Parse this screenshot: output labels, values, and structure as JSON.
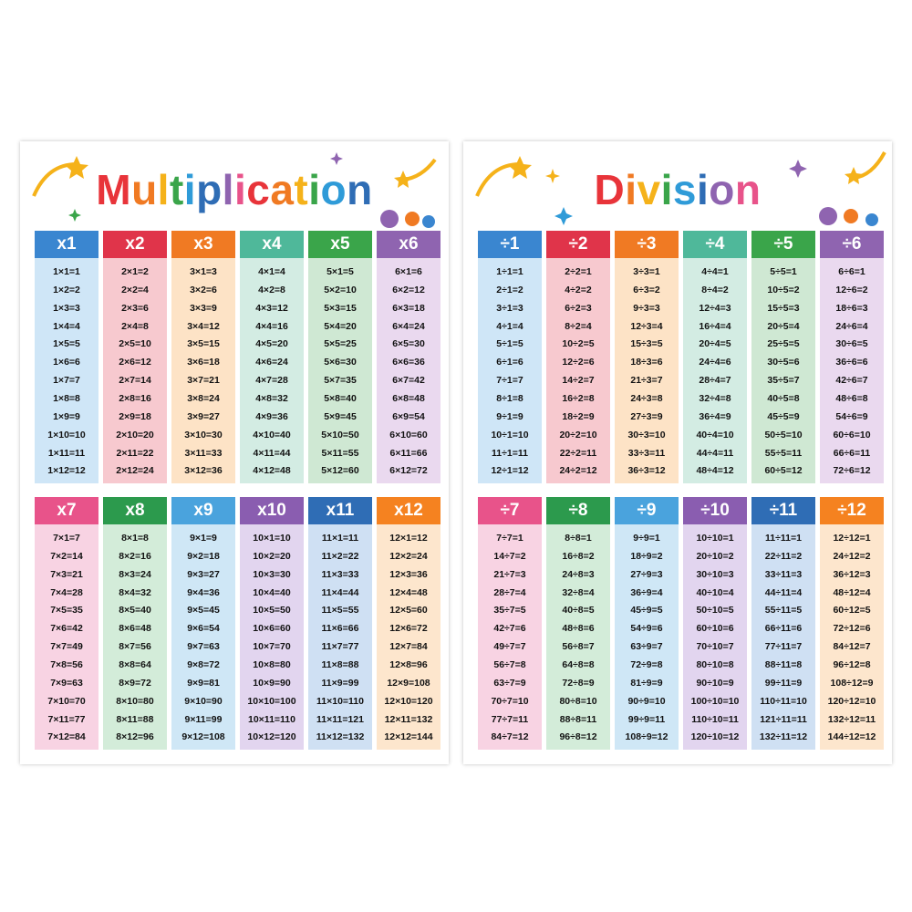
{
  "posters": [
    {
      "title": "Multiplication",
      "tables": [
        {
          "header": "x1",
          "rows": [
            "1×1=1",
            "1×2=2",
            "1×3=3",
            "1×4=4",
            "1×5=5",
            "1×6=6",
            "1×7=7",
            "1×8=8",
            "1×9=9",
            "1×10=10",
            "1×11=11",
            "1×12=12"
          ]
        },
        {
          "header": "x2",
          "rows": [
            "2×1=2",
            "2×2=4",
            "2×3=6",
            "2×4=8",
            "2×5=10",
            "2×6=12",
            "2×7=14",
            "2×8=16",
            "2×9=18",
            "2×10=20",
            "2×11=22",
            "2×12=24"
          ]
        },
        {
          "header": "x3",
          "rows": [
            "3×1=3",
            "3×2=6",
            "3×3=9",
            "3×4=12",
            "3×5=15",
            "3×6=18",
            "3×7=21",
            "3×8=24",
            "3×9=27",
            "3×10=30",
            "3×11=33",
            "3×12=36"
          ]
        },
        {
          "header": "x4",
          "rows": [
            "4×1=4",
            "4×2=8",
            "4×3=12",
            "4×4=16",
            "4×5=20",
            "4×6=24",
            "4×7=28",
            "4×8=32",
            "4×9=36",
            "4×10=40",
            "4×11=44",
            "4×12=48"
          ]
        },
        {
          "header": "x5",
          "rows": [
            "5×1=5",
            "5×2=10",
            "5×3=15",
            "5×4=20",
            "5×5=25",
            "5×6=30",
            "5×7=35",
            "5×8=40",
            "5×9=45",
            "5×10=50",
            "5×11=55",
            "5×12=60"
          ]
        },
        {
          "header": "x6",
          "rows": [
            "6×1=6",
            "6×2=12",
            "6×3=18",
            "6×4=24",
            "6×5=30",
            "6×6=36",
            "6×7=42",
            "6×8=48",
            "6×9=54",
            "6×10=60",
            "6×11=66",
            "6×12=72"
          ]
        },
        {
          "header": "x7",
          "rows": [
            "7×1=7",
            "7×2=14",
            "7×3=21",
            "7×4=28",
            "7×5=35",
            "7×6=42",
            "7×7=49",
            "7×8=56",
            "7×9=63",
            "7×10=70",
            "7×11=77",
            "7×12=84"
          ]
        },
        {
          "header": "x8",
          "rows": [
            "8×1=8",
            "8×2=16",
            "8×3=24",
            "8×4=32",
            "8×5=40",
            "8×6=48",
            "8×7=56",
            "8×8=64",
            "8×9=72",
            "8×10=80",
            "8×11=88",
            "8×12=96"
          ]
        },
        {
          "header": "x9",
          "rows": [
            "9×1=9",
            "9×2=18",
            "9×3=27",
            "9×4=36",
            "9×5=45",
            "9×6=54",
            "9×7=63",
            "9×8=72",
            "9×9=81",
            "9×10=90",
            "9×11=99",
            "9×12=108"
          ]
        },
        {
          "header": "x10",
          "rows": [
            "10×1=10",
            "10×2=20",
            "10×3=30",
            "10×4=40",
            "10×5=50",
            "10×6=60",
            "10×7=70",
            "10×8=80",
            "10×9=90",
            "10×10=100",
            "10×11=110",
            "10×12=120"
          ]
        },
        {
          "header": "x11",
          "rows": [
            "11×1=11",
            "11×2=22",
            "11×3=33",
            "11×4=44",
            "11×5=55",
            "11×6=66",
            "11×7=77",
            "11×8=88",
            "11×9=99",
            "11×10=110",
            "11×11=121",
            "11×12=132"
          ]
        },
        {
          "header": "x12",
          "rows": [
            "12×1=12",
            "12×2=24",
            "12×3=36",
            "12×4=48",
            "12×5=60",
            "12×6=72",
            "12×7=84",
            "12×8=96",
            "12×9=108",
            "12×10=120",
            "12×11=132",
            "12×12=144"
          ]
        }
      ]
    },
    {
      "title": "Division",
      "tables": [
        {
          "header": "÷1",
          "rows": [
            "1÷1=1",
            "2÷1=2",
            "3÷1=3",
            "4÷1=4",
            "5÷1=5",
            "6÷1=6",
            "7÷1=7",
            "8÷1=8",
            "9÷1=9",
            "10÷1=10",
            "11÷1=11",
            "12÷1=12"
          ]
        },
        {
          "header": "÷2",
          "rows": [
            "2÷2=1",
            "4÷2=2",
            "6÷2=3",
            "8÷2=4",
            "10÷2=5",
            "12÷2=6",
            "14÷2=7",
            "16÷2=8",
            "18÷2=9",
            "20÷2=10",
            "22÷2=11",
            "24÷2=12"
          ]
        },
        {
          "header": "÷3",
          "rows": [
            "3÷3=1",
            "6÷3=2",
            "9÷3=3",
            "12÷3=4",
            "15÷3=5",
            "18÷3=6",
            "21÷3=7",
            "24÷3=8",
            "27÷3=9",
            "30÷3=10",
            "33÷3=11",
            "36÷3=12"
          ]
        },
        {
          "header": "÷4",
          "rows": [
            "4÷4=1",
            "8÷4=2",
            "12÷4=3",
            "16÷4=4",
            "20÷4=5",
            "24÷4=6",
            "28÷4=7",
            "32÷4=8",
            "36÷4=9",
            "40÷4=10",
            "44÷4=11",
            "48÷4=12"
          ]
        },
        {
          "header": "÷5",
          "rows": [
            "5÷5=1",
            "10÷5=2",
            "15÷5=3",
            "20÷5=4",
            "25÷5=5",
            "30÷5=6",
            "35÷5=7",
            "40÷5=8",
            "45÷5=9",
            "50÷5=10",
            "55÷5=11",
            "60÷5=12"
          ]
        },
        {
          "header": "÷6",
          "rows": [
            "6÷6=1",
            "12÷6=2",
            "18÷6=3",
            "24÷6=4",
            "30÷6=5",
            "36÷6=6",
            "42÷6=7",
            "48÷6=8",
            "54÷6=9",
            "60÷6=10",
            "66÷6=11",
            "72÷6=12"
          ]
        },
        {
          "header": "÷7",
          "rows": [
            "7÷7=1",
            "14÷7=2",
            "21÷7=3",
            "28÷7=4",
            "35÷7=5",
            "42÷7=6",
            "49÷7=7",
            "56÷7=8",
            "63÷7=9",
            "70÷7=10",
            "77÷7=11",
            "84÷7=12"
          ]
        },
        {
          "header": "÷8",
          "rows": [
            "8÷8=1",
            "16÷8=2",
            "24÷8=3",
            "32÷8=4",
            "40÷8=5",
            "48÷8=6",
            "56÷8=7",
            "64÷8=8",
            "72÷8=9",
            "80÷8=10",
            "88÷8=11",
            "96÷8=12"
          ]
        },
        {
          "header": "÷9",
          "rows": [
            "9÷9=1",
            "18÷9=2",
            "27÷9=3",
            "36÷9=4",
            "45÷9=5",
            "54÷9=6",
            "63÷9=7",
            "72÷9=8",
            "81÷9=9",
            "90÷9=10",
            "99÷9=11",
            "108÷9=12"
          ]
        },
        {
          "header": "÷10",
          "rows": [
            "10÷10=1",
            "20÷10=2",
            "30÷10=3",
            "40÷10=4",
            "50÷10=5",
            "60÷10=6",
            "70÷10=7",
            "80÷10=8",
            "90÷10=9",
            "100÷10=10",
            "110÷10=11",
            "120÷10=12"
          ]
        },
        {
          "header": "÷11",
          "rows": [
            "11÷11=1",
            "22÷11=2",
            "33÷11=3",
            "44÷11=4",
            "55÷11=5",
            "66÷11=6",
            "77÷11=7",
            "88÷11=8",
            "99÷11=9",
            "110÷11=10",
            "121÷11=11",
            "132÷11=12"
          ]
        },
        {
          "header": "÷12",
          "rows": [
            "12÷12=1",
            "24÷12=2",
            "36÷12=3",
            "48÷12=4",
            "60÷12=5",
            "72÷12=6",
            "84÷12=7",
            "96÷12=8",
            "108÷12=9",
            "120÷12=10",
            "132÷12=11",
            "144÷12=12"
          ]
        }
      ]
    }
  ]
}
